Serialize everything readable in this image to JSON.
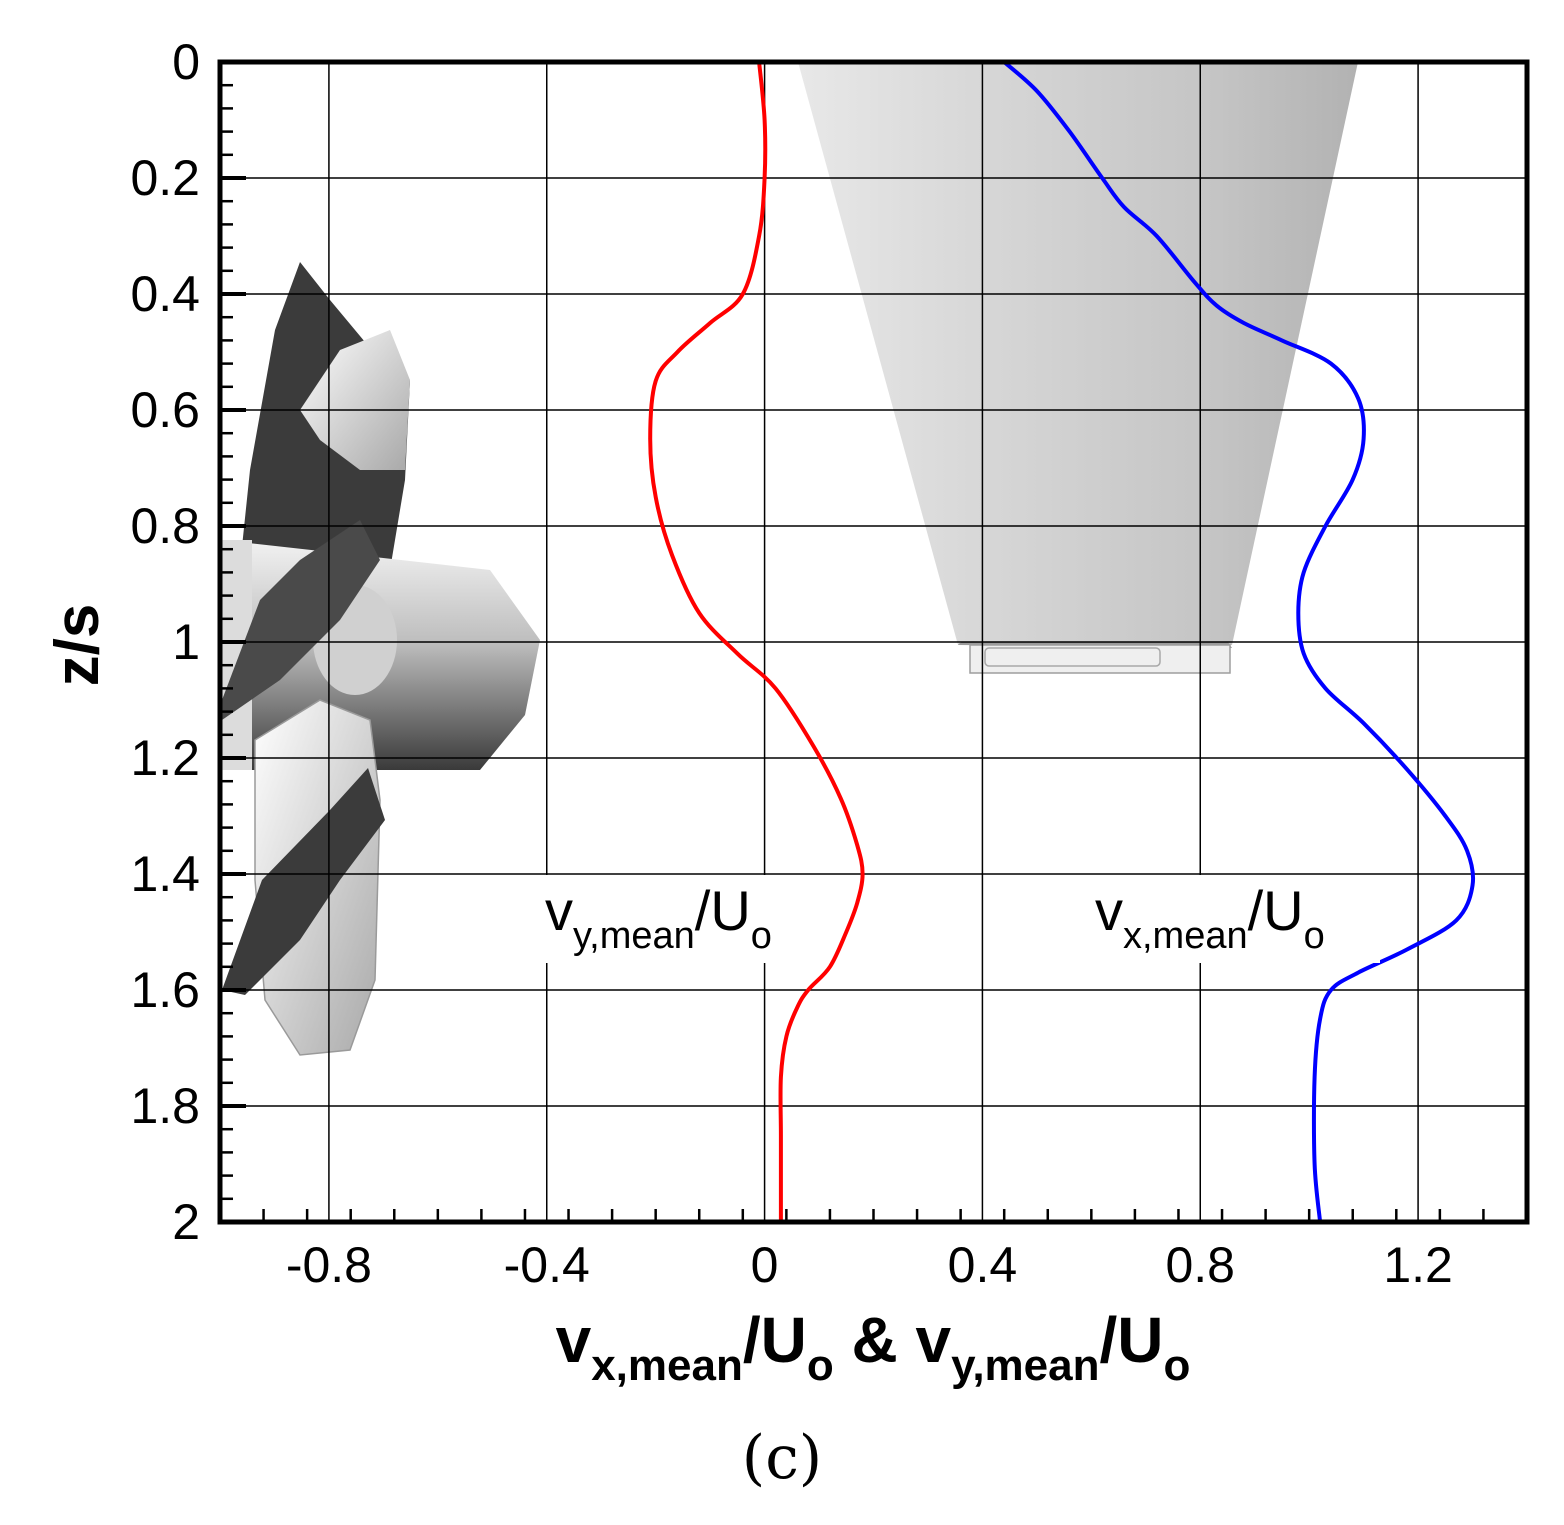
{
  "chart_data": {
    "type": "line",
    "xlim": [
      -1.0,
      1.4
    ],
    "ylim": [
      0,
      2
    ],
    "y_inverted": true,
    "grid": true,
    "x_ticks": [
      -0.8,
      -0.4,
      0,
      0.4,
      0.8,
      1.2
    ],
    "x_tick_labels": [
      "-0.8",
      "-0.4",
      "0",
      "0.4",
      "0.8",
      "1.2"
    ],
    "y_ticks": [
      0,
      0.2,
      0.4,
      0.6,
      0.8,
      1,
      1.2,
      1.4,
      1.6,
      1.8,
      2
    ],
    "y_tick_labels": [
      "0",
      "0.2",
      "0.4",
      "0.6",
      "0.8",
      "1",
      "1.2",
      "1.4",
      "1.6",
      "1.8",
      "2"
    ],
    "ylabel": "z/s",
    "xlabel": {
      "part1_main": "v",
      "part1_sub": "x,mean",
      "part1_tail": "/U",
      "part1_tail_sub": "o",
      "joiner": " & ",
      "part2_main": "v",
      "part2_sub": "y,mean",
      "part2_tail": "/U",
      "part2_tail_sub": "o"
    },
    "caption": "(c)",
    "series": [
      {
        "label_main": "v",
        "label_sub": "y,mean",
        "label_tail": "/U",
        "label_tail_sub": "o",
        "color": "#ff0000",
        "x": [
          -0.01,
          0.0,
          0.0,
          -0.01,
          -0.04,
          -0.1,
          -0.16,
          -0.2,
          -0.21,
          -0.2,
          -0.17,
          -0.12,
          -0.05,
          0.02,
          0.09,
          0.14,
          0.17,
          0.18,
          0.17,
          0.15,
          0.12,
          0.08,
          0.06,
          0.04,
          0.03,
          0.03,
          0.03,
          0.03
        ],
        "y": [
          0.0,
          0.1,
          0.2,
          0.3,
          0.4,
          0.45,
          0.5,
          0.55,
          0.65,
          0.75,
          0.85,
          0.95,
          1.02,
          1.08,
          1.18,
          1.27,
          1.35,
          1.4,
          1.45,
          1.5,
          1.56,
          1.6,
          1.63,
          1.68,
          1.75,
          1.85,
          1.95,
          2.0
        ]
      },
      {
        "label_main": "v",
        "label_sub": "x,mean",
        "label_tail": "/U",
        "label_tail_sub": "o",
        "color": "#0000ff",
        "x": [
          0.44,
          0.5,
          0.56,
          0.62,
          0.66,
          0.72,
          0.79,
          0.83,
          0.88,
          0.95,
          1.04,
          1.09,
          1.1,
          1.08,
          1.03,
          0.99,
          0.98,
          0.99,
          1.03,
          1.1,
          1.18,
          1.25,
          1.29,
          1.3,
          1.27,
          1.18,
          1.09,
          1.04,
          1.02,
          1.01,
          1.01,
          1.02
        ],
        "y": [
          0.0,
          0.05,
          0.12,
          0.2,
          0.25,
          0.3,
          0.38,
          0.42,
          0.45,
          0.48,
          0.52,
          0.58,
          0.65,
          0.72,
          0.8,
          0.88,
          0.95,
          1.02,
          1.08,
          1.14,
          1.22,
          1.3,
          1.36,
          1.42,
          1.48,
          1.53,
          1.57,
          1.6,
          1.65,
          1.75,
          1.9,
          2.0
        ]
      }
    ]
  }
}
